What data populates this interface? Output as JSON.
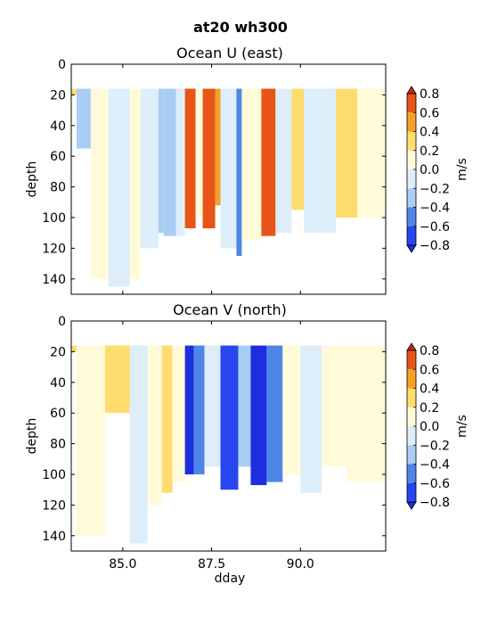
{
  "figure": {
    "suptitle": "at20 wh300"
  },
  "chart_data": [
    {
      "type": "heatmap",
      "title": "Ocean U (east)",
      "xlabel": "",
      "ylabel": "depth",
      "xlim": [
        83.55,
        92.4
      ],
      "ylim": [
        150,
        0
      ],
      "xticks": [
        85.0,
        87.5,
        90.0
      ],
      "xtick_labels": [
        "",
        "",
        ""
      ],
      "yticks": [
        0,
        20,
        40,
        60,
        80,
        100,
        120,
        140
      ],
      "ytick_labels": [
        "0",
        "20",
        "40",
        "60",
        "80",
        "100",
        "120",
        "140"
      ],
      "colorbar": {
        "label": "m/s",
        "ticks": [
          "0.8",
          "0.6",
          "0.4",
          "0.2",
          "0.0",
          "−0.2",
          "−0.4",
          "−0.6",
          "−0.8"
        ],
        "levels": [
          -0.8,
          -0.6,
          -0.4,
          -0.2,
          0.0,
          0.2,
          0.4,
          0.6,
          0.8
        ],
        "colors": [
          "#2846f0",
          "#4f86e6",
          "#a9cdf5",
          "#ddeefa",
          "#fffbd8",
          "#ffdc6e",
          "#f5a028",
          "#e85418"
        ],
        "extend_under_color": "#1c2fe0",
        "extend_over_color": "#c62a10"
      },
      "columns": [
        {
          "x0": 83.55,
          "x1": 83.7,
          "bottom": 20,
          "value": 0.25
        },
        {
          "x0": 83.7,
          "x1": 84.1,
          "bottom": 55,
          "value": -0.25
        },
        {
          "x0": 84.1,
          "x1": 84.6,
          "bottom": 140,
          "value": 0.15
        },
        {
          "x0": 84.6,
          "x1": 85.2,
          "bottom": 145,
          "value": -0.1
        },
        {
          "x0": 85.2,
          "x1": 85.5,
          "bottom": 140,
          "value": 0.1
        },
        {
          "x0": 85.5,
          "x1": 86.0,
          "bottom": 120,
          "value": -0.1
        },
        {
          "x0": 86.0,
          "x1": 86.15,
          "bottom": 110,
          "value": -0.35
        },
        {
          "x0": 86.15,
          "x1": 86.5,
          "bottom": 112,
          "value": -0.3
        },
        {
          "x0": 86.5,
          "x1": 86.75,
          "bottom": 112,
          "value": -0.1
        },
        {
          "x0": 86.75,
          "x1": 87.05,
          "bottom": 107,
          "value": 0.75
        },
        {
          "x0": 87.05,
          "x1": 87.25,
          "bottom": 100,
          "value": 0.1
        },
        {
          "x0": 87.25,
          "x1": 87.6,
          "bottom": 107,
          "value": 0.8
        },
        {
          "x0": 87.6,
          "x1": 87.75,
          "bottom": 92,
          "value": 0.6
        },
        {
          "x0": 87.75,
          "x1": 88.2,
          "bottom": 120,
          "value": -0.15
        },
        {
          "x0": 88.2,
          "x1": 88.35,
          "bottom": 125,
          "value": -0.45
        },
        {
          "x0": 88.35,
          "x1": 88.9,
          "bottom": 115,
          "value": 0.15
        },
        {
          "x0": 88.9,
          "x1": 89.3,
          "bottom": 112,
          "value": 0.65
        },
        {
          "x0": 89.3,
          "x1": 89.75,
          "bottom": 110,
          "value": -0.15
        },
        {
          "x0": 89.75,
          "x1": 90.1,
          "bottom": 95,
          "value": 0.3
        },
        {
          "x0": 90.1,
          "x1": 91.0,
          "bottom": 110,
          "value": -0.1
        },
        {
          "x0": 91.0,
          "x1": 91.6,
          "bottom": 100,
          "value": 0.3
        },
        {
          "x0": 91.6,
          "x1": 92.4,
          "bottom": 100,
          "value": 0.15
        }
      ]
    },
    {
      "type": "heatmap",
      "title": "Ocean V (north)",
      "xlabel": "dday",
      "ylabel": "depth",
      "xlim": [
        83.55,
        92.4
      ],
      "ylim": [
        150,
        0
      ],
      "xticks": [
        85.0,
        87.5,
        90.0
      ],
      "xtick_labels": [
        "85.0",
        "87.5",
        "90.0"
      ],
      "yticks": [
        0,
        20,
        40,
        60,
        80,
        100,
        120,
        140
      ],
      "ytick_labels": [
        "0",
        "20",
        "40",
        "60",
        "80",
        "100",
        "120",
        "140"
      ],
      "colorbar": {
        "label": "m/s",
        "ticks": [
          "0.8",
          "0.6",
          "0.4",
          "0.2",
          "0.0",
          "−0.2",
          "−0.4",
          "−0.6",
          "−0.8"
        ],
        "levels": [
          -0.8,
          -0.6,
          -0.4,
          -0.2,
          0.0,
          0.2,
          0.4,
          0.6,
          0.8
        ],
        "colors": [
          "#2846f0",
          "#4f86e6",
          "#a9cdf5",
          "#ddeefa",
          "#fffbd8",
          "#ffdc6e",
          "#f5a028",
          "#e85418"
        ],
        "extend_under_color": "#1c2fe0",
        "extend_over_color": "#c62a10"
      },
      "columns": [
        {
          "x0": 83.55,
          "x1": 83.7,
          "bottom": 20,
          "value": 0.25
        },
        {
          "x0": 83.7,
          "x1": 84.5,
          "bottom": 140,
          "value": 0.1
        },
        {
          "x0": 84.5,
          "x1": 85.2,
          "bottom": 60,
          "value": 0.3
        },
        {
          "x0": 85.2,
          "x1": 85.7,
          "bottom": 145,
          "value": -0.1
        },
        {
          "x0": 85.7,
          "x1": 86.1,
          "bottom": 120,
          "value": 0.1
        },
        {
          "x0": 86.1,
          "x1": 86.4,
          "bottom": 112,
          "value": 0.3
        },
        {
          "x0": 86.4,
          "x1": 86.75,
          "bottom": 105,
          "value": 0.1
        },
        {
          "x0": 86.75,
          "x1": 87.0,
          "bottom": 100,
          "value": -0.85
        },
        {
          "x0": 87.0,
          "x1": 87.3,
          "bottom": 100,
          "value": -0.5
        },
        {
          "x0": 87.3,
          "x1": 87.75,
          "bottom": 95,
          "value": -0.15
        },
        {
          "x0": 87.75,
          "x1": 88.25,
          "bottom": 110,
          "value": -0.7
        },
        {
          "x0": 88.25,
          "x1": 88.6,
          "bottom": 95,
          "value": -0.25
        },
        {
          "x0": 88.6,
          "x1": 89.05,
          "bottom": 107,
          "value": -0.85
        },
        {
          "x0": 89.05,
          "x1": 89.5,
          "bottom": 105,
          "value": -0.4
        },
        {
          "x0": 89.5,
          "x1": 90.0,
          "bottom": 100,
          "value": 0.1
        },
        {
          "x0": 90.0,
          "x1": 90.6,
          "bottom": 112,
          "value": -0.15
        },
        {
          "x0": 90.6,
          "x1": 91.3,
          "bottom": 95,
          "value": 0.1
        },
        {
          "x0": 91.3,
          "x1": 92.4,
          "bottom": 105,
          "value": 0.1
        }
      ]
    }
  ]
}
